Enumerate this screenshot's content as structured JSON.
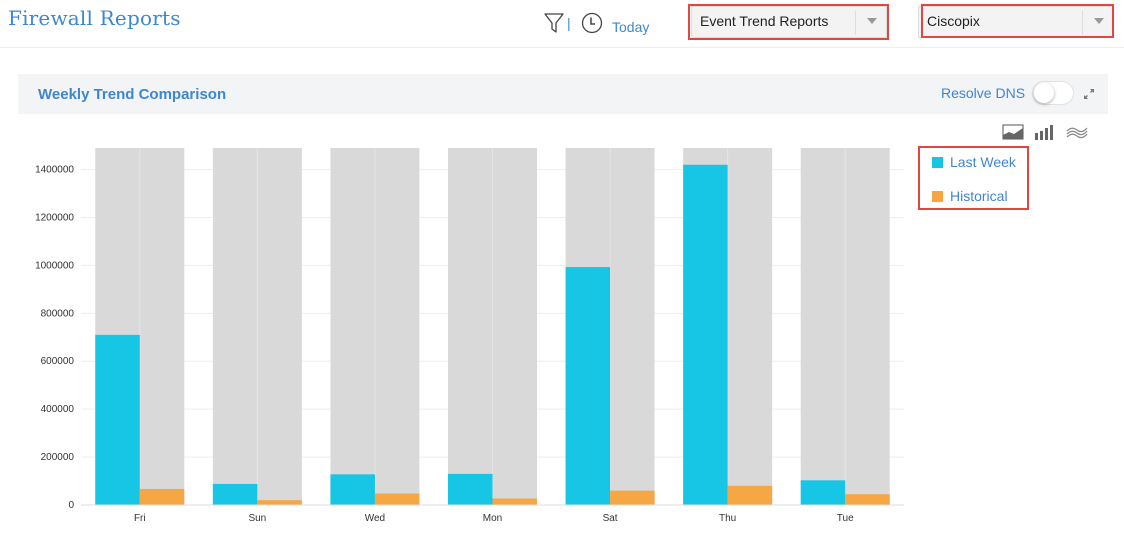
{
  "header": {
    "title": "Firewall Reports",
    "separator": "|",
    "today_label": "Today",
    "report_select": {
      "value": "Event Trend Reports"
    },
    "device_select": {
      "value": "Ciscopix"
    }
  },
  "panel": {
    "title": "Weekly Trend Comparison",
    "resolve_dns_label": "Resolve DNS",
    "resolve_dns_on": false
  },
  "view_icons": [
    "area-chart-icon",
    "bar-chart-icon",
    "line-chart-icon"
  ],
  "colors": {
    "accent": "#3f86d0",
    "last_week": "#17c5e4",
    "historical": "#f6a642",
    "bar_background": "#d9d9d9",
    "highlight": "#e0483f"
  },
  "chart_data": {
    "type": "bar",
    "title": "Weekly Trend Comparison",
    "categories": [
      "Fri",
      "Sun",
      "Wed",
      "Mon",
      "Sat",
      "Thu",
      "Tue"
    ],
    "series": [
      {
        "name": "Last Week",
        "color": "#17c5e4",
        "values": [
          710000,
          88000,
          128000,
          130000,
          993000,
          1420000,
          103000
        ]
      },
      {
        "name": "Historical",
        "color": "#f6a642",
        "values": [
          67000,
          20000,
          48000,
          27000,
          60000,
          80000,
          45000
        ]
      }
    ],
    "ylim": [
      0,
      1490000
    ],
    "yticks": [
      0,
      200000,
      400000,
      600000,
      800000,
      1000000,
      1200000,
      1400000
    ],
    "ytick_labels": [
      "0",
      "200000",
      "400000",
      "600000",
      "800000",
      "1000000",
      "1200000",
      "1400000"
    ],
    "xlabel": "",
    "ylabel": "",
    "grid": true,
    "legend_position": "right"
  }
}
